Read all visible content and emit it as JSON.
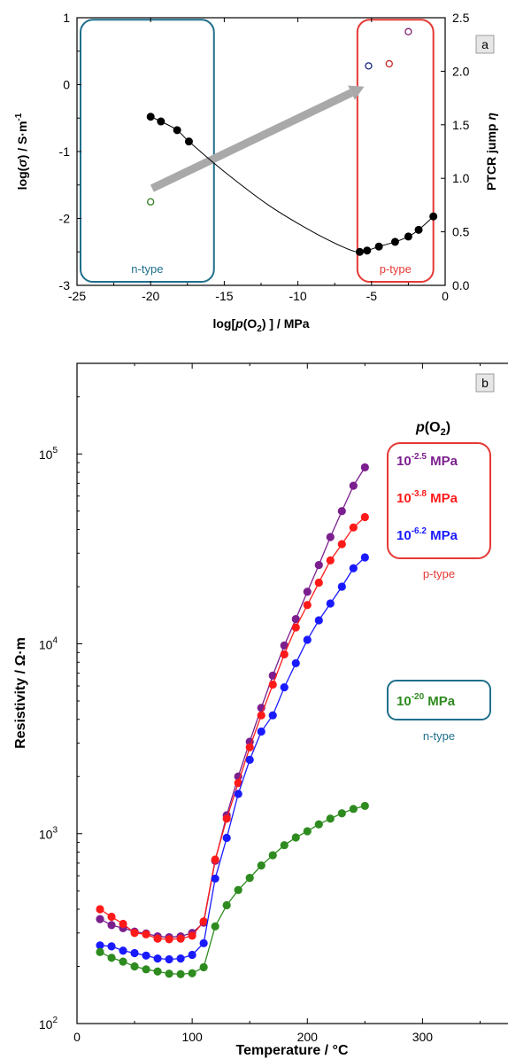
{
  "chart_data": [
    {
      "type": "scatter",
      "panel_label": "a",
      "xlim": [
        -25,
        0
      ],
      "ylim": [
        -3,
        1
      ],
      "y2lim": [
        0,
        2.5
      ],
      "xticks": [
        -25,
        -20,
        -15,
        -10,
        -5,
        0
      ],
      "yticks": [
        -3,
        -2,
        -1,
        0,
        1
      ],
      "y2ticks": [
        "0.0",
        "0.5",
        "1.0",
        "1.5",
        "2.0",
        "2.5"
      ],
      "xlabel": {
        "pre": "log[",
        "italic": "p",
        "mid": "(O",
        "sub": "2",
        "post": ") ] / MPa"
      },
      "ylabel": {
        "pre": "log(",
        "italic": "σ",
        "post": ") / S·m",
        "sup": "-1"
      },
      "y2label": {
        "pre": "PTCR jump ",
        "italic": "η"
      },
      "series": [
        {
          "axis": "left",
          "marker": "filled",
          "color": "#000000",
          "x": [
            -20.0,
            -19.3,
            -18.2,
            -17.4,
            -5.8,
            -5.3,
            -4.5,
            -3.4,
            -2.5,
            -1.8,
            -0.8
          ],
          "y": [
            -0.48,
            -0.55,
            -0.68,
            -0.85,
            -2.5,
            -2.48,
            -2.42,
            -2.35,
            -2.27,
            -2.17,
            -1.97
          ]
        },
        {
          "axis": "right",
          "marker": "open",
          "colors": [
            "#2e7d1f",
            "#1a237e",
            "#c62828",
            "#7b1f6e"
          ],
          "x": [
            -20.0,
            -5.2,
            -3.8,
            -2.5
          ],
          "y": [
            0.78,
            2.05,
            2.07,
            2.37
          ]
        }
      ],
      "fit_curve": {
        "x": [
          -20.0,
          -19.3,
          -18.2,
          -17.4,
          -15.0,
          -12.0,
          -9.0,
          -7.0,
          -6.0,
          -5.3,
          -4.5,
          -3.4,
          -2.5,
          -1.8,
          -0.8
        ],
        "y": [
          -0.48,
          -0.55,
          -0.68,
          -0.85,
          -1.3,
          -1.8,
          -2.2,
          -2.42,
          -2.5,
          -2.48,
          -2.42,
          -2.35,
          -2.27,
          -2.17,
          -1.97
        ]
      },
      "regions": [
        {
          "label": "n-type",
          "x": [
            -25,
            -15.7
          ],
          "y": [
            -3,
            0.97
          ],
          "color": "#1f6f8b"
        },
        {
          "label": "p-type",
          "x": [
            -6.2,
            -0.8
          ],
          "y": [
            -3,
            0.97
          ],
          "color": "#e53935"
        }
      ],
      "arrow": {
        "from": [
          -19.9,
          -1.55
        ],
        "to": [
          -5.5,
          -0.03
        ],
        "color": "#a9a9a9"
      }
    },
    {
      "type": "line",
      "panel_label": "b",
      "xlim": [
        0,
        375
      ],
      "ylim": [
        100,
        300000
      ],
      "yscale": "log",
      "xticks": [
        0,
        100,
        200,
        300
      ],
      "yticks": [
        {
          "value": 100,
          "base": "10",
          "exp": "2"
        },
        {
          "value": 1000,
          "base": "10",
          "exp": "3"
        },
        {
          "value": 10000,
          "base": "10",
          "exp": "4"
        },
        {
          "value": 100000,
          "base": "10",
          "exp": "5"
        }
      ],
      "xlabel": "Temperature / °C",
      "ylabel": "Resistivity / Ω·m",
      "x": [
        20,
        30,
        40,
        50,
        60,
        70,
        80,
        90,
        100,
        110,
        120,
        130,
        140,
        150,
        160,
        170,
        180,
        190,
        200,
        210,
        220,
        230,
        240,
        250
      ],
      "series": [
        {
          "label_base": "10",
          "label_exp": "-2.5",
          "label_unit": " MPa",
          "color": "#7b1f8e",
          "y": [
            355,
            330,
            318,
            305,
            298,
            288,
            285,
            288,
            300,
            340,
            720,
            1250,
            2000,
            3050,
            4600,
            6800,
            9800,
            13500,
            18800,
            26000,
            36500,
            50000,
            68000,
            85000
          ]
        },
        {
          "label_base": "10",
          "label_exp": "-3.8",
          "label_unit": " MPa",
          "color": "#ff1a1a",
          "y": [
            400,
            365,
            335,
            300,
            295,
            280,
            278,
            280,
            290,
            345,
            730,
            1200,
            1850,
            2850,
            4200,
            6100,
            8800,
            12200,
            16000,
            21000,
            27500,
            33500,
            41000,
            46500
          ]
        },
        {
          "label_base": "10",
          "label_exp": "-6.2",
          "label_unit": " MPa",
          "color": "#1a1aff",
          "y": [
            258,
            255,
            242,
            235,
            228,
            220,
            218,
            220,
            230,
            265,
            580,
            950,
            1620,
            2450,
            3450,
            4200,
            5900,
            7900,
            10500,
            13300,
            16300,
            20000,
            25000,
            28500
          ]
        },
        {
          "label_base": "10",
          "label_exp": "-20",
          "label_unit": " MPa",
          "color": "#2e8b1f",
          "y": [
            238,
            222,
            212,
            200,
            193,
            188,
            183,
            182,
            184,
            198,
            325,
            420,
            505,
            585,
            680,
            770,
            870,
            955,
            1030,
            1120,
            1200,
            1280,
            1350,
            1400
          ]
        }
      ],
      "legend_title": {
        "italic": "p",
        "pre": "(O",
        "sub": "2",
        "post": ")"
      },
      "group_labels": {
        "p": "p-type",
        "n": "n-type"
      },
      "group_colors": {
        "p": "#e53935",
        "n": "#1f6f8b"
      }
    }
  ]
}
